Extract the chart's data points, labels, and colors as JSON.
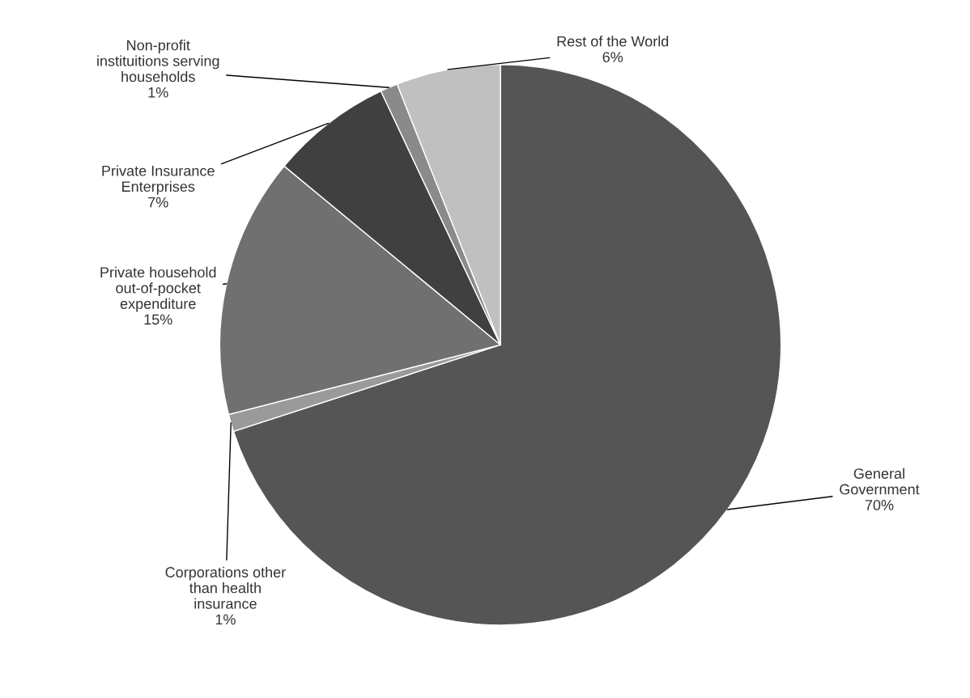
{
  "chart_data": {
    "type": "pie",
    "categories": [
      "General\nGovernment",
      "Corporations other\nthan health\ninsurance",
      "Private household\nout-of-pocket\nexpenditure",
      "Private Insurance\nEnterprises",
      "Non-profit\ninstituitions serving\nhouseholds",
      "Rest of the World"
    ],
    "values": [
      70,
      1,
      15,
      7,
      1,
      6
    ],
    "colors": [
      "#555555",
      "#9a9a9a",
      "#707070",
      "#404040",
      "#8a8a8a",
      "#c0c0c0"
    ],
    "value_labels": [
      "70%",
      "1%",
      "15%",
      "7%",
      "1%",
      "6%"
    ]
  }
}
